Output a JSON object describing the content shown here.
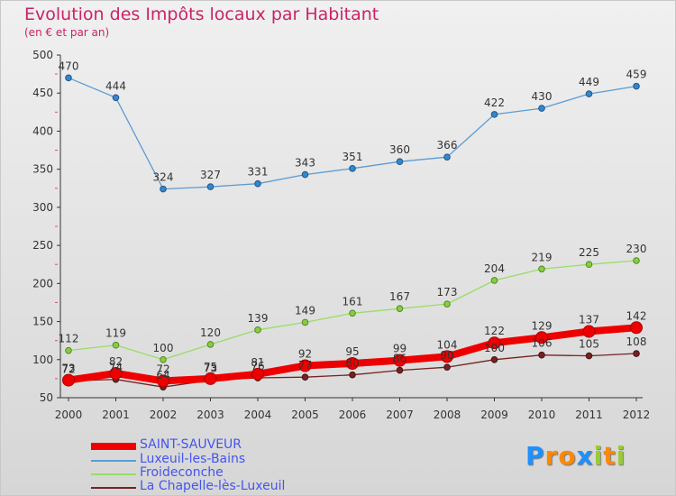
{
  "chart_data": {
    "type": "line",
    "title": "Evolution des Impôts locaux par Habitant",
    "subtitle": "(en € et par an)",
    "x": [
      "2000",
      "2001",
      "2002",
      "2003",
      "2004",
      "2005",
      "2006",
      "2007",
      "2008",
      "2009",
      "2010",
      "2011",
      "2012"
    ],
    "yticks": [
      50,
      100,
      150,
      200,
      250,
      300,
      350,
      400,
      450,
      500
    ],
    "ylim": [
      50,
      500
    ],
    "grid": false,
    "legend_position": "bottom-left",
    "series": [
      {
        "name": "SAINT-SAUVEUR",
        "color": "#ee0000",
        "values": [
          73,
          82,
          72,
          75,
          81,
          92,
          95,
          99,
          104,
          122,
          129,
          137,
          142
        ]
      },
      {
        "name": "Luxeuil-les-Bains",
        "color": "#5b9bd5",
        "values": [
          470,
          444,
          324,
          327,
          331,
          343,
          351,
          360,
          366,
          422,
          430,
          449,
          459
        ]
      },
      {
        "name": "Froideconche",
        "color": "#99dd66",
        "values": [
          112,
          119,
          100,
          120,
          139,
          149,
          161,
          167,
          173,
          204,
          219,
          225,
          230
        ]
      },
      {
        "name": "La Chapelle-lès-Luxeuil",
        "color": "#772222",
        "values": [
          72,
          74,
          64,
          73,
          76,
          77,
          80,
          86,
          90,
          100,
          106,
          105,
          108
        ]
      }
    ],
    "data_label_series": [
      0,
      1,
      2,
      3
    ],
    "data_labels": {
      "0": [
        "73",
        "82",
        "72",
        "75",
        "81",
        "92",
        "95",
        "99",
        "104",
        "122",
        "129",
        "137",
        "142"
      ],
      "1": [
        "470",
        "444",
        "324",
        "327",
        "331",
        "343",
        "351",
        "360",
        "366",
        "422",
        "430",
        "449",
        "459"
      ],
      "2": [
        "112",
        "119",
        "100",
        "120",
        "139",
        "149",
        "161",
        "167",
        "173",
        "204",
        "219",
        "225",
        "230"
      ],
      "3": [
        "72",
        "74",
        "64",
        "73",
        "76",
        "77",
        "80",
        "86",
        "90",
        "100",
        "106",
        "105",
        "108"
      ]
    }
  },
  "brand": {
    "letters": [
      "P",
      "r",
      "o",
      "x",
      "i",
      "t",
      "i"
    ],
    "colors": [
      "#1e90ff",
      "#ff8800",
      "#ff8800",
      "#1e90ff",
      "#99cc33",
      "#ff8800",
      "#99cc33"
    ]
  }
}
